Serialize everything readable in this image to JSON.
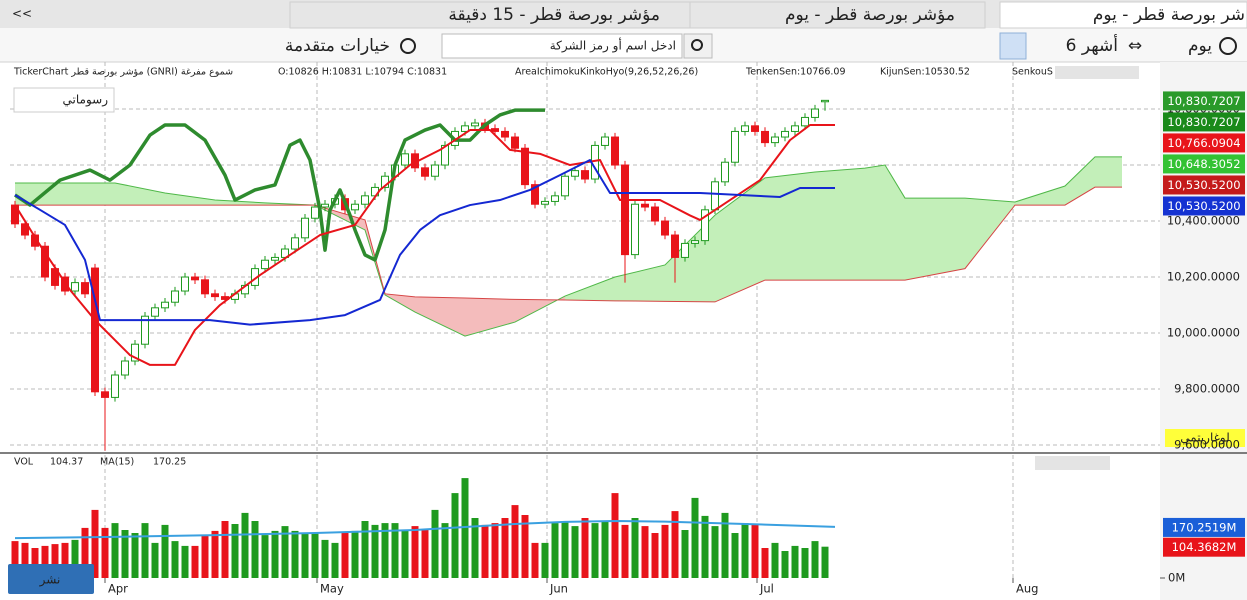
{
  "tabs": [
    "شر بورصة قطر - يوم",
    "مؤشر بورصة قطر - يوم",
    "مؤشر بورصة قطر - 15 دقيقة"
  ],
  "active_tab": 0,
  "collapse": "<<",
  "toolbar": {
    "interval": "يوم",
    "range": "6 أشهر",
    "search_placeholder": "ادخل اسم أو رمز الشركة",
    "advanced": "خيارات متقدمة"
  },
  "info": {
    "source": "TickerChart مؤشر بورصة قطر (GNRI) شموع مفرغة",
    "ohlc": "O:10826 H:10831 L:10794 C:10831",
    "indicator": "AreaIchimokuKinkoHyo(9,26,52,26,26)",
    "tenkan": "TenkenSen:10766.09",
    "kijun": "KijunSen:10530.52",
    "senkou": "SenkouS"
  },
  "drawings_button": "رسوماتي",
  "log_button": "لوغاريتمي",
  "publish_button": "نشر",
  "chart_data": [
    {
      "type": "candlestick",
      "up_color": "#1f9a1f",
      "down_color": "#e8141a",
      "open": [
        10457,
        10390,
        10350,
        10310,
        10230,
        10200,
        10150,
        10180,
        10232,
        9790,
        9770,
        9850,
        9900,
        9960,
        10060,
        10090,
        10110,
        10150,
        10200,
        10190,
        10140,
        10130,
        10120,
        10140,
        10170,
        10230,
        10260,
        10270,
        10300,
        10340,
        10410,
        10450,
        10460,
        10480,
        10440,
        10460,
        10490,
        10520,
        10560,
        10600,
        10640,
        10590,
        10560,
        10600,
        10670,
        10720,
        10740,
        10750,
        10730,
        10720,
        10700,
        10660,
        10530,
        10460,
        10470,
        10490,
        10560,
        10580,
        10550,
        10670,
        10700,
        10600,
        10280,
        10460,
        10450,
        10400,
        10350,
        10270,
        10320,
        10330,
        10440,
        10540,
        10610,
        10720,
        10740,
        10720,
        10680,
        10700,
        10720,
        10740,
        10770,
        10826
      ],
      "high": [
        10472,
        10405,
        10365,
        10325,
        10245,
        10215,
        10195,
        10195,
        10247,
        9805,
        9865,
        9915,
        9975,
        10075,
        10105,
        10125,
        10165,
        10215,
        10215,
        10205,
        10155,
        10145,
        10155,
        10185,
        10245,
        10275,
        10285,
        10315,
        10355,
        10425,
        10465,
        10475,
        10495,
        10495,
        10475,
        10505,
        10535,
        10575,
        10615,
        10655,
        10655,
        10605,
        10615,
        10685,
        10735,
        10755,
        10765,
        10765,
        10745,
        10735,
        10715,
        10675,
        10545,
        10485,
        10505,
        10575,
        10595,
        10595,
        10685,
        10715,
        10715,
        10615,
        10475,
        10475,
        10465,
        10415,
        10365,
        10335,
        10345,
        10455,
        10555,
        10625,
        10735,
        10755,
        10755,
        10735,
        10715,
        10735,
        10755,
        10785,
        10815,
        10831
      ],
      "low": [
        10375,
        10335,
        10295,
        10185,
        10155,
        10135,
        10135,
        10125,
        9775,
        9580,
        9755,
        9835,
        9885,
        9945,
        10045,
        10075,
        10095,
        10135,
        10175,
        10125,
        10115,
        10105,
        10105,
        10125,
        10155,
        10215,
        10245,
        10255,
        10285,
        10325,
        10395,
        10435,
        10445,
        10425,
        10425,
        10445,
        10475,
        10505,
        10545,
        10585,
        10575,
        10545,
        10545,
        10585,
        10655,
        10705,
        10725,
        10715,
        10705,
        10685,
        10645,
        10515,
        10445,
        10445,
        10455,
        10475,
        10545,
        10535,
        10535,
        10655,
        10585,
        10180,
        10265,
        10435,
        10385,
        10335,
        10180,
        10255,
        10305,
        10315,
        10425,
        10525,
        10595,
        10705,
        10705,
        10665,
        10665,
        10685,
        10705,
        10725,
        10755,
        10794
      ],
      "close": [
        10390,
        10350,
        10310,
        10200,
        10170,
        10150,
        10180,
        10140,
        9790,
        9770,
        9850,
        9900,
        9960,
        10060,
        10090,
        10110,
        10150,
        10200,
        10190,
        10140,
        10130,
        10120,
        10140,
        10170,
        10230,
        10260,
        10270,
        10300,
        10340,
        10410,
        10450,
        10460,
        10480,
        10440,
        10460,
        10490,
        10520,
        10560,
        10600,
        10640,
        10590,
        10560,
        10600,
        10670,
        10720,
        10740,
        10750,
        10730,
        10720,
        10700,
        10660,
        10530,
        10460,
        10470,
        10490,
        10560,
        10580,
        10550,
        10670,
        10700,
        10600,
        10280,
        10460,
        10450,
        10400,
        10350,
        10270,
        10320,
        10330,
        10440,
        10540,
        10610,
        10720,
        10740,
        10720,
        10680,
        10700,
        10720,
        10740,
        10770,
        10800,
        10831
      ],
      "cloud": {
        "x": [
          0,
          5,
          10,
          15,
          20,
          25,
          30,
          35,
          37,
          40,
          45,
          50,
          55,
          60,
          65,
          70,
          75,
          80,
          85,
          87,
          89,
          95,
          100,
          105,
          108,
          110.7
        ],
        "span_a": [
          10536,
          10536,
          10536,
          10500,
          10475,
          10465,
          10457,
          10368,
          10136,
          10075,
          9989,
          10039,
          10132,
          10200,
          10243,
          10421,
          10554,
          10575,
          10589,
          10600,
          10482,
          10482,
          10468,
          10525,
          10629,
          10629
        ],
        "span_b": [
          10457,
          10457,
          10457,
          10457,
          10457,
          10457,
          10457,
          10404,
          10140,
          10129,
          10125,
          10120,
          10118,
          10115,
          10113,
          10111,
          10189,
          10189,
          10189,
          10189,
          10189,
          10230,
          10457,
          10457,
          10521,
          10521
        ],
        "a_color": "#4fb848",
        "b_color": "#d64545",
        "up_fill": "#c3efb9",
        "down_fill": "#f4bcbc"
      },
      "lines": [
        {
          "color": "#2e8b2e",
          "width": 3.5,
          "x": [
            0,
            1.5,
            4.5,
            7.5,
            9.5,
            11.5,
            13.5,
            15,
            17,
            19,
            21,
            22,
            24,
            26,
            27.5,
            28.5,
            29.5,
            30.5,
            31,
            31.5,
            32.5,
            33.5,
            34,
            35,
            36,
            37,
            38,
            39,
            41,
            42.5,
            44,
            45.5,
            47,
            48.5,
            50,
            53
          ],
          "values": [
            10493,
            10457,
            10546,
            10582,
            10546,
            10600,
            10707,
            10743,
            10743,
            10689,
            10564,
            10475,
            10511,
            10529,
            10671,
            10689,
            10618,
            10439,
            10296,
            10439,
            10511,
            10421,
            10368,
            10279,
            10261,
            10368,
            10600,
            10689,
            10725,
            10743,
            10689,
            10689,
            10743,
            10779,
            10796,
            10796
          ]
        },
        {
          "color": "#e8141a",
          "width": 2,
          "x": [
            0,
            2.5,
            5.5,
            8,
            11.5,
            13.5,
            16,
            18,
            20.5,
            24.5,
            27.5,
            30.5,
            34,
            36.5,
            39.5,
            42.5,
            45.5,
            47.5,
            49.5,
            52.5,
            55.5,
            58.5,
            60.5,
            64.5,
            67.5,
            68.5,
            71.5,
            74.5,
            77.5,
            79.5,
            82
          ],
          "values": [
            10457,
            10314,
            10154,
            10046,
            9921,
            9886,
            9886,
            10011,
            10100,
            10207,
            10279,
            10350,
            10386,
            10511,
            10600,
            10654,
            10725,
            10725,
            10654,
            10640,
            10600,
            10618,
            10475,
            10475,
            10420,
            10404,
            10475,
            10546,
            10689,
            10743,
            10743
          ]
        },
        {
          "color": "#1428d2",
          "width": 2,
          "x": [
            0,
            2.5,
            5,
            7,
            8.5,
            13.5,
            19.5,
            23.5,
            29.5,
            33,
            36.5,
            38.5,
            40.5,
            42.5,
            45.5,
            48.5,
            51.5,
            54.5,
            57.5,
            59.5,
            68.5,
            76.5,
            78.5,
            82
          ],
          "values": [
            10493,
            10440,
            10386,
            10261,
            10046,
            10046,
            10046,
            10030,
            10046,
            10064,
            10118,
            10279,
            10368,
            10421,
            10457,
            10475,
            10511,
            10564,
            10618,
            10500,
            10500,
            10486,
            10518,
            10518
          ]
        }
      ],
      "ylim": [
        9575,
        10968
      ],
      "yticks": [
        {
          "value": 9600,
          "label": "9,600.0000"
        },
        {
          "value": 9800,
          "label": "9,800.0000"
        },
        {
          "value": 10000,
          "label": "10,000.0000"
        },
        {
          "value": 10200,
          "label": "10,200.0000"
        },
        {
          "value": 10400,
          "label": "10,400.0000"
        },
        {
          "value": 10600,
          "label": "10,600.0000"
        },
        {
          "value": 10800,
          "label": "10,800.0000"
        }
      ],
      "xlim": [
        -0.5,
        114.5
      ],
      "xticks": [
        {
          "value": 9,
          "label": "Apr"
        },
        {
          "value": 30.2,
          "label": "May"
        },
        {
          "value": 53.2,
          "label": "Jun"
        },
        {
          "value": 74.2,
          "label": "Jul"
        },
        {
          "value": 99.8,
          "label": "Aug"
        }
      ],
      "grid": true,
      "price_markers": [
        {
          "value": 10830.7207,
          "label": "10,830.7207",
          "color": "#2a9a2a"
        },
        {
          "value": 10830.7207,
          "label": "10,830.7207",
          "color": "#1a8a1a"
        },
        {
          "value": 10766.0904,
          "label": "10,766.0904",
          "color": "#e8141a"
        },
        {
          "value": 10648.3052,
          "label": "10,648.3052",
          "color": "#33c233"
        },
        {
          "value": 10530.52,
          "label": "10,530.5200",
          "color": "#c41a1a"
        },
        {
          "value": 10530.52,
          "label": "10,530.5200",
          "color": "#1432d2"
        }
      ]
    },
    {
      "type": "bar",
      "title": "VOL",
      "value_label": "104.37",
      "ma_title": "MA(15)",
      "ma_label": "170.25",
      "values": [
        123,
        117,
        100,
        107,
        113,
        117,
        127,
        167,
        227,
        167,
        183,
        160,
        150,
        183,
        117,
        177,
        123,
        107,
        107,
        140,
        157,
        190,
        180,
        217,
        190,
        143,
        157,
        173,
        157,
        150,
        150,
        127,
        117,
        150,
        157,
        190,
        177,
        183,
        183,
        160,
        173,
        160,
        227,
        183,
        283,
        333,
        200,
        177,
        183,
        200,
        243,
        210,
        117,
        117,
        183,
        190,
        173,
        200,
        183,
        190,
        283,
        177,
        200,
        173,
        150,
        177,
        223,
        160,
        267,
        207,
        173,
        217,
        150,
        183,
        177,
        100,
        117,
        90,
        107,
        100,
        123,
        104.37
      ],
      "ma": {
        "color": "#3aa0e0",
        "x": [
          0,
          10,
          20,
          30,
          40,
          45,
          50,
          55,
          60,
          65,
          70,
          75,
          82
        ],
        "values": [
          133,
          137,
          143,
          150,
          160,
          170,
          180,
          187,
          190,
          188,
          183,
          178,
          170.25
        ]
      },
      "ylim": [
        0,
        410
      ],
      "yticks": [
        {
          "value": 0,
          "label": "0M"
        }
      ],
      "markers": [
        {
          "value": 170.2519,
          "label": "170.2519M",
          "color": "#1a5fd8"
        },
        {
          "value": 104.3682,
          "label": "104.3682M",
          "color": "#e8141a"
        }
      ]
    }
  ]
}
